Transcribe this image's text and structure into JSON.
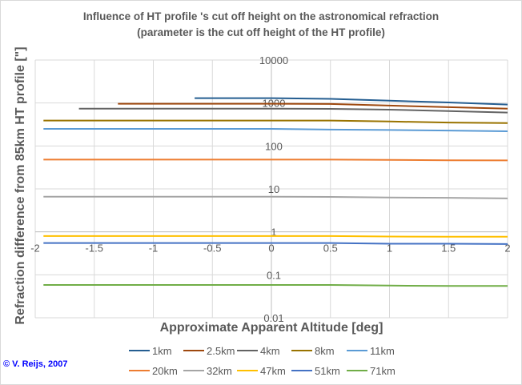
{
  "chart_data": {
    "type": "line",
    "title": "Influence of HT profile 's cut off height on the astronomical refraction",
    "subtitle": "(parameter is the cut off height of the HT profile)",
    "xlabel": "Approximate Apparent Altitude [deg]",
    "ylabel": "Refraction difference from 85km HT profile [\"]",
    "xlim": [
      -2,
      2
    ],
    "ylim": [
      0.01,
      10000
    ],
    "yscale": "log",
    "grid": true,
    "legend": "bottom",
    "xticks": [
      "-2",
      "-1.5",
      "-1",
      "-0.5",
      "0",
      "0.5",
      "1",
      "1.5",
      "2"
    ],
    "yticks": [
      "0.01",
      "0.1",
      "1",
      "10",
      "100",
      "1000",
      "10000"
    ],
    "series": [
      {
        "name": "1km",
        "color": "#255e91",
        "x": [
          -0.65,
          0,
          0.5,
          1,
          1.5,
          2
        ],
        "y": [
          1300,
          1300,
          1250,
          1130,
          1030,
          920
        ]
      },
      {
        "name": "2.5km",
        "color": "#9e480e",
        "x": [
          -1.3,
          0,
          0.5,
          1,
          1.5,
          2
        ],
        "y": [
          960,
          960,
          950,
          870,
          800,
          740
        ]
      },
      {
        "name": "4km",
        "color": "#636363",
        "x": [
          -1.63,
          0,
          0.5,
          1,
          1.5,
          2
        ],
        "y": [
          740,
          740,
          730,
          700,
          650,
          600
        ]
      },
      {
        "name": "8km",
        "color": "#997300",
        "x": [
          -1.93,
          0,
          0.5,
          1,
          1.5,
          2
        ],
        "y": [
          390,
          390,
          390,
          370,
          350,
          340
        ]
      },
      {
        "name": "11km",
        "color": "#5b9bd5",
        "x": [
          -1.93,
          0,
          0.5,
          1,
          1.5,
          2
        ],
        "y": [
          250,
          250,
          240,
          235,
          228,
          220
        ]
      },
      {
        "name": "20km",
        "color": "#ed7d31",
        "x": [
          -1.93,
          0,
          0.5,
          1,
          1.5,
          2
        ],
        "y": [
          48,
          48,
          48,
          47.5,
          46.5,
          46
        ]
      },
      {
        "name": "32km",
        "color": "#a5a5a5",
        "x": [
          -1.93,
          0,
          0.5,
          1,
          1.5,
          2
        ],
        "y": [
          6.6,
          6.6,
          6.5,
          6.3,
          6.2,
          6.0
        ]
      },
      {
        "name": "47km",
        "color": "#ffc000",
        "x": [
          -1.93,
          0,
          0.5,
          1,
          1.5,
          2
        ],
        "y": [
          0.8,
          0.8,
          0.8,
          0.78,
          0.77,
          0.77
        ]
      },
      {
        "name": "51km",
        "color": "#4472c4",
        "x": [
          -1.93,
          0,
          0.5,
          1,
          1.5,
          2
        ],
        "y": [
          0.55,
          0.55,
          0.55,
          0.53,
          0.53,
          0.52
        ]
      },
      {
        "name": "71km",
        "color": "#70ad47",
        "x": [
          -1.93,
          0,
          0.5,
          1,
          1.5,
          2
        ],
        "y": [
          0.058,
          0.058,
          0.058,
          0.056,
          0.055,
          0.055
        ]
      }
    ]
  },
  "copyright": "© V. Reijs, 2007"
}
